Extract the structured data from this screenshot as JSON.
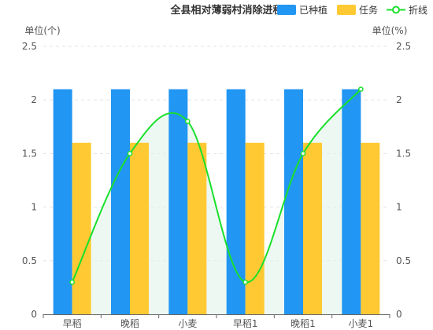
{
  "chart_data": {
    "type": "bar",
    "title": "全县相对薄弱村消除进程",
    "categories": [
      "早稻",
      "晚稻",
      "小麦",
      "早稻1",
      "晚稻1",
      "小麦1"
    ],
    "series": [
      {
        "name": "已种植",
        "type": "bar",
        "axis": "left",
        "color": "#2196f3",
        "values": [
          2.1,
          2.1,
          2.1,
          2.1,
          2.1,
          2.1
        ]
      },
      {
        "name": "任务",
        "type": "bar",
        "axis": "left",
        "color": "#ffc933",
        "values": [
          1.6,
          1.6,
          1.6,
          1.6,
          1.6,
          1.6
        ]
      },
      {
        "name": "折线",
        "type": "line",
        "axis": "right",
        "color": "#19e02c",
        "smooth": true,
        "area": true,
        "values": [
          0.3,
          1.5,
          1.8,
          0.3,
          1.5,
          2.1
        ]
      }
    ],
    "yleft": {
      "label": "单位(个)",
      "ticks": [
        "0",
        "0.5",
        "1",
        "1.5",
        "2",
        "2.5"
      ],
      "ylim": [
        0,
        2.5
      ]
    },
    "yright": {
      "label": "单位(%)",
      "ticks": [
        "0",
        "0.5",
        "1",
        "1.5",
        "2",
        "2.5"
      ],
      "ylim": [
        0,
        2.5
      ]
    },
    "grid": "horizontal-dashed",
    "legend": "top-right"
  }
}
